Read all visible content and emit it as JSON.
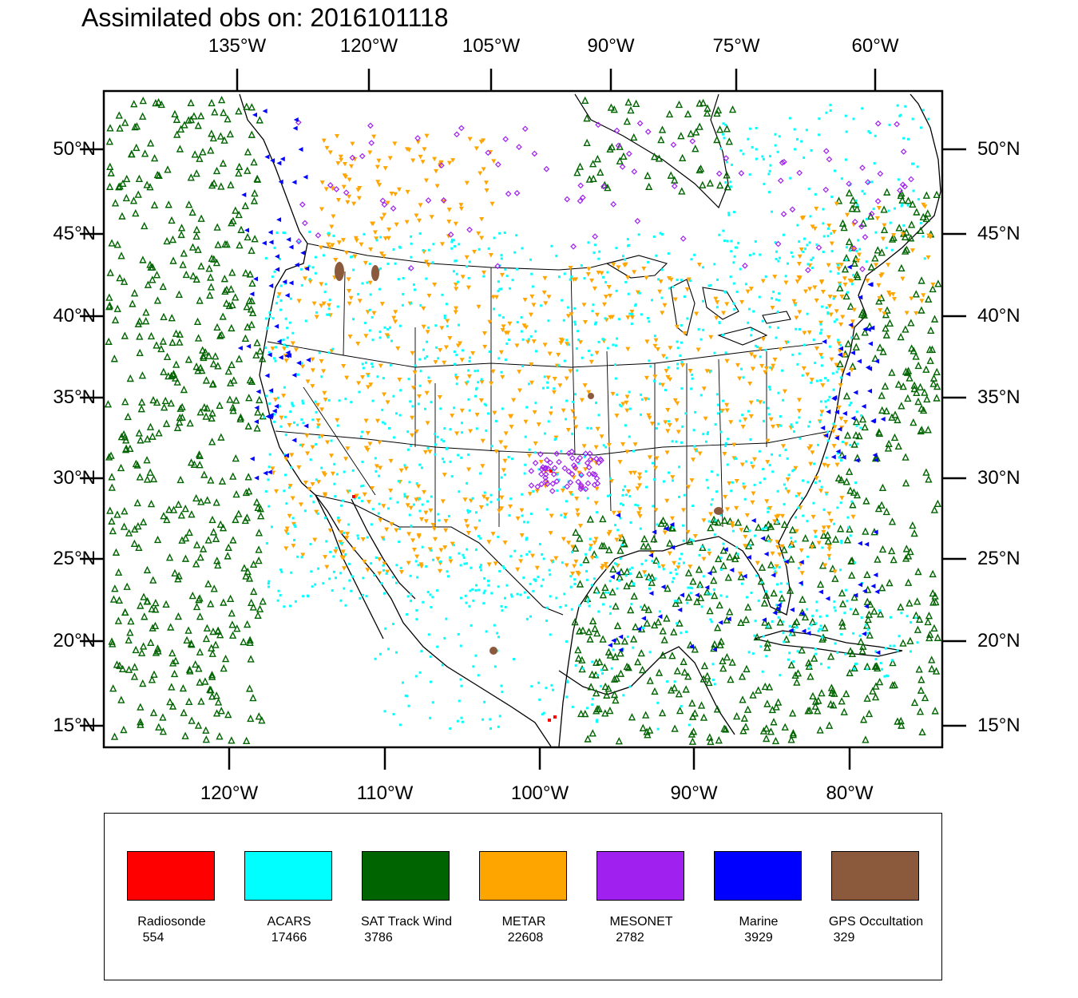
{
  "title": "Assimilated obs on: 2016101118",
  "top_ticks": [
    "135°W",
    "120°W",
    "105°W",
    "90°W",
    "75°W",
    "60°W"
  ],
  "bottom_ticks": [
    "120°W",
    "110°W",
    "100°W",
    "90°W",
    "80°W"
  ],
  "left_ticks": [
    "50°N",
    "45°N",
    "40°N",
    "35°N",
    "30°N",
    "25°N",
    "20°N",
    "15°N"
  ],
  "right_ticks": [
    "50°N",
    "45°N",
    "40°N",
    "35°N",
    "30°N",
    "25°N",
    "20°N",
    "15°N"
  ],
  "legend": [
    {
      "label": "Radiosonde",
      "count": "554",
      "color": "#ff0000"
    },
    {
      "label": "ACARS",
      "count": "17466",
      "color": "#00ffff"
    },
    {
      "label": "SAT Track Wind",
      "count": "3786",
      "color": "#006400"
    },
    {
      "label": "METAR",
      "count": "22608",
      "color": "#ffa500"
    },
    {
      "label": "MESONET",
      "count": "2782",
      "color": "#a020f0"
    },
    {
      "label": "Marine",
      "count": "3929",
      "color": "#0000ff"
    },
    {
      "label": "GPS Occultation",
      "count": "329",
      "color": "#8b5a3c"
    }
  ]
}
